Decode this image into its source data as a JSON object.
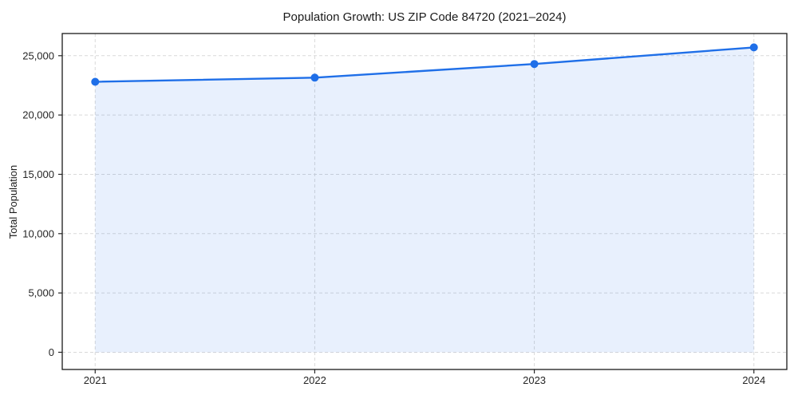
{
  "figure": {
    "background": "#ffffff"
  },
  "chart_data": {
    "type": "line",
    "title": "Population Growth: US ZIP Code 84720 (2021–2024)",
    "xlabel": "",
    "ylabel": "Total Population",
    "x": [
      2021,
      2022,
      2023,
      2024
    ],
    "series": [
      {
        "name": "Total Population",
        "values": [
          22800,
          23150,
          24300,
          25700
        ]
      }
    ],
    "x_tick_labels": [
      "2021",
      "2022",
      "2023",
      "2024"
    ],
    "y_ticks": [
      0,
      5000,
      10000,
      15000,
      20000,
      25000
    ],
    "y_tick_labels": [
      "0",
      "5,000",
      "10,000",
      "15,000",
      "20,000",
      "25,000"
    ],
    "xlim": [
      2020.85,
      2024.15
    ],
    "ylim": [
      -1450,
      26870
    ],
    "grid": true,
    "grid_style": "dashed",
    "legend_position": "none",
    "area_fill": true,
    "area_baseline": 0,
    "marker": "circle",
    "colors": {
      "line": "#1f6fe8",
      "fill": "rgba(31,111,232,0.10)",
      "grid": "#d9d9d9",
      "spine": "#1a1a1a",
      "tick": "#262626",
      "text": "#1a1a1a"
    }
  }
}
